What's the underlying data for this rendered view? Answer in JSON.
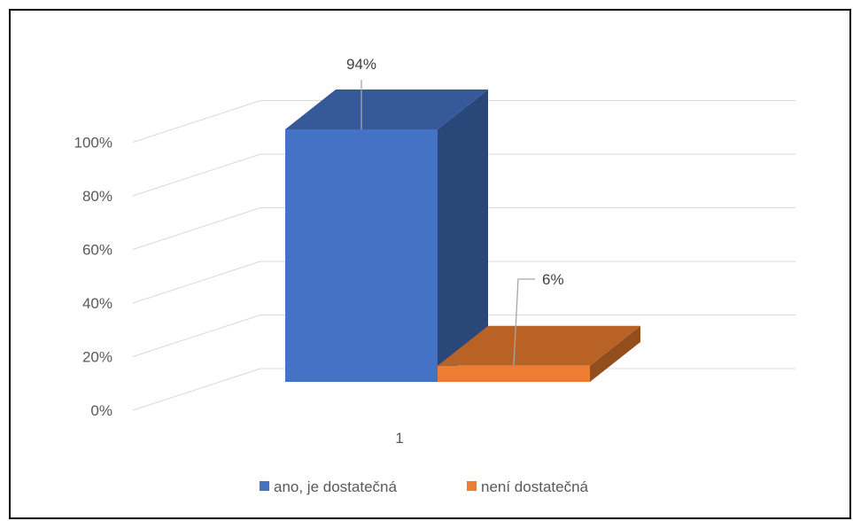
{
  "chart_data": {
    "type": "bar",
    "categories": [
      "1"
    ],
    "series": [
      {
        "name": "ano, je dostatečná",
        "values": [
          94
        ],
        "label": "94%",
        "color": "#4472C4"
      },
      {
        "name": "není dostatečná",
        "values": [
          6
        ],
        "label": "6%",
        "color": "#ED7D31"
      }
    ],
    "y_ticks": [
      "0%",
      "20%",
      "40%",
      "60%",
      "80%",
      "100%"
    ],
    "ylim": [
      0,
      100
    ],
    "three_d": true,
    "grid": true,
    "legend_position": "bottom"
  }
}
